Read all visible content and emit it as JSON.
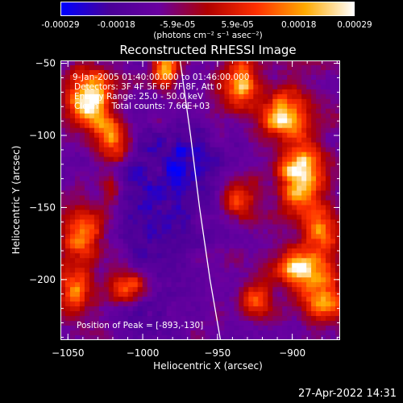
{
  "chart_data": {
    "type": "heatmap",
    "title": "Reconstructed RHESSI Image",
    "xlabel": "Heliocentric X (arcsec)",
    "ylabel": "Heliocentric Y (arcsec)",
    "xlim": [
      -1055,
      -868
    ],
    "ylim": [
      -242,
      -48
    ],
    "x_ticks": [
      -1050,
      -1000,
      -950,
      -900
    ],
    "y_ticks": [
      -200,
      -150,
      -100,
      -50
    ],
    "colorbar": {
      "range": [
        -0.00029,
        0.00029
      ],
      "tick_values": [
        -0.00029,
        -0.00018,
        -5.9e-05,
        5.9e-05,
        0.00018,
        0.00029
      ],
      "tick_labels": [
        "-0.00029",
        "-0.00018",
        "-5.9e-05",
        "5.9e-05",
        "0.00018",
        "0.00029"
      ],
      "unit": "(photons cm⁻² s⁻¹ asec⁻²)",
      "colormap": [
        "#0000ff",
        "#4a0098",
        "#6a00a0",
        "#b00000",
        "#ff3000",
        "#ffaa00",
        "#ffffff"
      ]
    },
    "annotations": {
      "time": "9-Jan-2005 01:40:00.000 to 01:46:00.000",
      "detectors": "Detectors: 3F 4F 5F 6F 7F 8F, Att 0",
      "energy": "Energy Range: 25.0 - 50.0 keV",
      "clean": "Clean     Total counts: 7.66E+03",
      "peak": "Position of Peak = [-893,-130]"
    },
    "limb_curve": [
      [
        -975,
        -48
      ],
      [
        -968,
        -100
      ],
      [
        -962,
        -150
      ],
      [
        -955,
        -200
      ],
      [
        -948,
        -242
      ]
    ],
    "bright_sources": [
      {
        "x": -1035,
        "y": -75,
        "intensity": 0.95,
        "sx": 10,
        "sy": 15
      },
      {
        "x": -1020,
        "y": -105,
        "intensity": 0.85,
        "sx": 8,
        "sy": 10
      },
      {
        "x": -1040,
        "y": -170,
        "intensity": 0.65,
        "sx": 10,
        "sy": 14
      },
      {
        "x": -1045,
        "y": -210,
        "intensity": 0.7,
        "sx": 8,
        "sy": 10
      },
      {
        "x": -1010,
        "y": -205,
        "intensity": 0.6,
        "sx": 10,
        "sy": 8
      },
      {
        "x": -985,
        "y": -55,
        "intensity": 0.7,
        "sx": 6,
        "sy": 10
      },
      {
        "x": -935,
        "y": -65,
        "intensity": 0.85,
        "sx": 8,
        "sy": 12
      },
      {
        "x": -905,
        "y": -85,
        "intensity": 0.8,
        "sx": 12,
        "sy": 12
      },
      {
        "x": -895,
        "y": -128,
        "intensity": 1.0,
        "sx": 10,
        "sy": 14
      },
      {
        "x": -880,
        "y": -165,
        "intensity": 0.7,
        "sx": 8,
        "sy": 10
      },
      {
        "x": -893,
        "y": -192,
        "intensity": 0.9,
        "sx": 14,
        "sy": 10
      },
      {
        "x": -880,
        "y": -215,
        "intensity": 0.75,
        "sx": 10,
        "sy": 8
      },
      {
        "x": -925,
        "y": -215,
        "intensity": 0.55,
        "sx": 8,
        "sy": 8
      },
      {
        "x": -935,
        "y": -145,
        "intensity": 0.45,
        "sx": 8,
        "sy": 10
      },
      {
        "x": -1020,
        "y": -140,
        "intensity": 0.4,
        "sx": 6,
        "sy": 8
      }
    ],
    "cold_sources": [
      {
        "x": -990,
        "y": -150,
        "intensity": 0.55,
        "sx": 25,
        "sy": 40
      },
      {
        "x": -970,
        "y": -120,
        "intensity": 0.45,
        "sx": 15,
        "sy": 18
      },
      {
        "x": -995,
        "y": -220,
        "intensity": 0.4,
        "sx": 14,
        "sy": 10
      }
    ]
  },
  "footer": {
    "timestamp": "27-Apr-2022 14:31"
  }
}
